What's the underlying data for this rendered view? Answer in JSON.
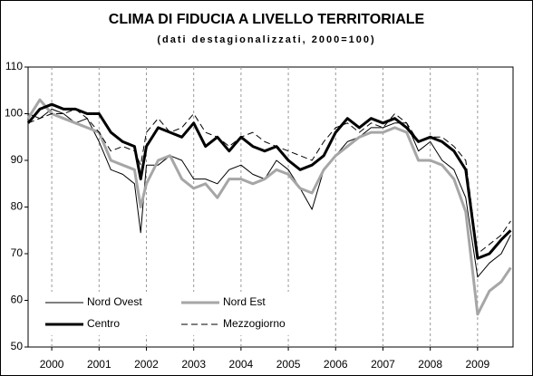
{
  "chart_data": {
    "type": "line",
    "title": "CLIMA DI FIDUCIA A LIVELLO TERRITORIALE",
    "subtitle": "(dati destagionalizzati, 2000=100)",
    "x": [
      1999.5,
      1999.75,
      2000,
      2000.25,
      2000.5,
      2000.75,
      2001,
      2001.25,
      2001.5,
      2001.75,
      2001.88,
      2002,
      2002.25,
      2002.5,
      2002.75,
      2003,
      2003.25,
      2003.5,
      2003.75,
      2004,
      2004.25,
      2004.5,
      2004.75,
      2005,
      2005.25,
      2005.5,
      2005.75,
      2006,
      2006.25,
      2006.5,
      2006.75,
      2007,
      2007.25,
      2007.5,
      2007.75,
      2008,
      2008.25,
      2008.5,
      2008.75,
      2009,
      2009.25,
      2009.5,
      2009.7
    ],
    "series": [
      {
        "name": "Nord Ovest",
        "color": "#000000",
        "width": 1,
        "dash": false,
        "values": [
          100,
          99,
          101,
          100,
          98,
          99,
          94,
          88,
          87,
          85,
          74.5,
          89,
          89,
          91,
          90,
          86,
          86,
          85,
          88,
          89,
          87,
          86,
          90,
          88,
          84,
          79.5,
          88,
          91,
          94,
          95,
          97,
          97,
          98,
          98,
          92,
          94,
          90,
          88,
          82,
          65,
          68,
          70,
          74
        ]
      },
      {
        "name": "Nord Est",
        "color": "#a6a6a6",
        "width": 3,
        "dash": false,
        "values": [
          99,
          103,
          100,
          99,
          98,
          97,
          96,
          90,
          89,
          88,
          80,
          85,
          90,
          91,
          86,
          84,
          85,
          82,
          86,
          86,
          85,
          86,
          88,
          87,
          84,
          83,
          88,
          91,
          93,
          95,
          96,
          96,
          97,
          96,
          90,
          90,
          89,
          86,
          79,
          57,
          62,
          64,
          67
        ]
      },
      {
        "name": "Centro",
        "color": "#000000",
        "width": 3,
        "dash": false,
        "values": [
          98,
          101,
          102,
          101,
          101,
          100,
          100,
          96,
          94,
          93,
          86,
          93,
          97,
          96,
          95,
          98,
          93,
          95,
          92,
          95,
          93,
          92,
          93,
          90,
          88,
          89,
          91,
          96,
          99,
          97,
          99,
          98,
          99,
          97,
          94,
          95,
          94,
          92,
          88,
          69,
          70,
          73,
          75
        ]
      },
      {
        "name": "Mezzogiorno",
        "color": "#000000",
        "width": 1,
        "dash": true,
        "values": [
          98,
          99,
          100,
          100,
          101,
          99,
          96,
          92,
          93,
          92,
          89,
          96,
          99,
          96,
          97,
          100,
          96,
          95,
          93,
          95,
          96,
          94,
          93,
          92,
          91,
          90,
          94,
          97,
          98,
          96,
          98,
          97,
          100,
          98,
          94,
          95,
          95,
          93,
          90,
          70,
          72,
          74,
          77
        ]
      }
    ],
    "xlim": [
      1999.5,
      2009.75
    ],
    "xticks": [
      2000,
      2001,
      2002,
      2003,
      2004,
      2005,
      2006,
      2007,
      2008,
      2009
    ],
    "ylim": [
      50,
      110
    ],
    "yticks": [
      50,
      60,
      70,
      80,
      90,
      100,
      110
    ],
    "grid": "x",
    "legend": "lower left"
  }
}
